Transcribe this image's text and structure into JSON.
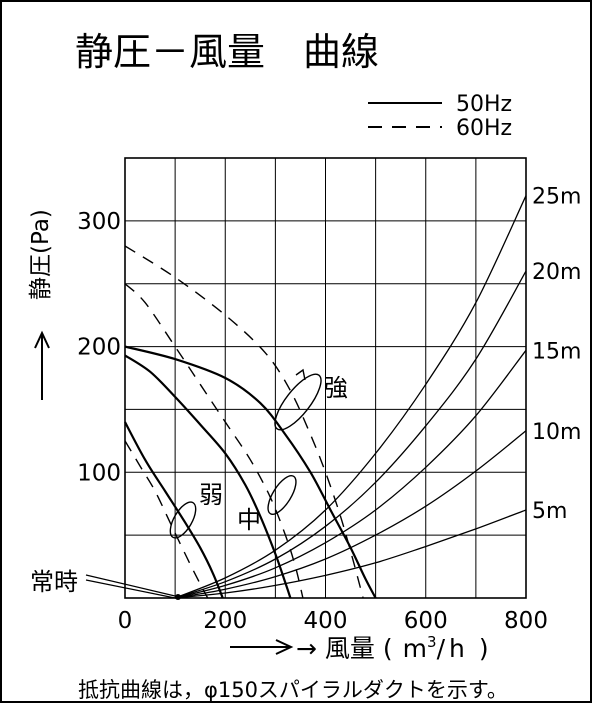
{
  "chart_data": {
    "type": "line",
    "title": "静圧－風量　曲線",
    "xlabel": "風量（m³/h）",
    "xlabel_parts": [
      "→ 風量",
      "(",
      "m",
      "3",
      "/",
      "h",
      ")"
    ],
    "ylabel": "静圧(Pa)",
    "ylabel_parts": [
      "静圧",
      "(",
      "Pa",
      ")"
    ],
    "xlim": [
      0,
      800
    ],
    "ylim": [
      0,
      350
    ],
    "x_ticks": [
      {
        "v": 0,
        "label": "0"
      },
      {
        "v": 200,
        "label": "200"
      },
      {
        "v": 400,
        "label": "400"
      },
      {
        "v": 600,
        "label": "600"
      },
      {
        "v": 800,
        "label": "800"
      }
    ],
    "y_ticks": [
      {
        "v": 100,
        "label": "100"
      },
      {
        "v": 200,
        "label": "200"
      },
      {
        "v": 300,
        "label": "300"
      }
    ],
    "grid": true,
    "legend": {
      "position": "top-right",
      "entries": [
        {
          "label": "50Hz",
          "dash": "solid"
        },
        {
          "label": "60Hz",
          "dash": "dashed"
        }
      ]
    },
    "fan_curves": [
      {
        "mode": "強",
        "freq": "50Hz",
        "dash": "solid",
        "points": [
          [
            0,
            200
          ],
          [
            100,
            190
          ],
          [
            200,
            175
          ],
          [
            270,
            155
          ],
          [
            320,
            130
          ],
          [
            370,
            100
          ],
          [
            410,
            70
          ],
          [
            450,
            40
          ],
          [
            480,
            15
          ],
          [
            500,
            0
          ]
        ]
      },
      {
        "mode": "強",
        "freq": "60Hz",
        "dash": "dashed",
        "points": [
          [
            0,
            280
          ],
          [
            100,
            255
          ],
          [
            200,
            225
          ],
          [
            280,
            195
          ],
          [
            330,
            165
          ],
          [
            370,
            130
          ],
          [
            400,
            100
          ],
          [
            430,
            65
          ],
          [
            455,
            30
          ],
          [
            475,
            0
          ]
        ]
      },
      {
        "mode": "中",
        "freq": "50Hz",
        "dash": "solid",
        "points": [
          [
            0,
            193
          ],
          [
            50,
            180
          ],
          [
            100,
            160
          ],
          [
            150,
            138
          ],
          [
            200,
            115
          ],
          [
            240,
            90
          ],
          [
            270,
            65
          ],
          [
            300,
            35
          ],
          [
            320,
            12
          ],
          [
            330,
            0
          ]
        ]
      },
      {
        "mode": "中",
        "freq": "60Hz",
        "dash": "dashed",
        "points": [
          [
            0,
            250
          ],
          [
            40,
            235
          ],
          [
            100,
            200
          ],
          [
            150,
            170
          ],
          [
            200,
            140
          ],
          [
            250,
            110
          ],
          [
            290,
            80
          ],
          [
            320,
            50
          ],
          [
            340,
            25
          ],
          [
            355,
            0
          ]
        ]
      },
      {
        "mode": "弱",
        "freq": "50Hz",
        "dash": "solid",
        "points": [
          [
            0,
            140
          ],
          [
            40,
            110
          ],
          [
            80,
            85
          ],
          [
            120,
            60
          ],
          [
            150,
            40
          ],
          [
            175,
            20
          ],
          [
            195,
            0
          ]
        ]
      },
      {
        "mode": "弱",
        "freq": "60Hz",
        "dash": "dashed",
        "points": [
          [
            0,
            125
          ],
          [
            30,
            105
          ],
          [
            60,
            85
          ],
          [
            90,
            60
          ],
          [
            120,
            35
          ],
          [
            145,
            15
          ],
          [
            165,
            0
          ]
        ]
      }
    ],
    "resistance_curves": [
      {
        "label": "25m",
        "points": [
          [
            100,
            0
          ],
          [
            200,
            16
          ],
          [
            300,
            38
          ],
          [
            400,
            70
          ],
          [
            500,
            115
          ],
          [
            600,
            170
          ],
          [
            700,
            235
          ],
          [
            800,
            320
          ]
        ]
      },
      {
        "label": "20m",
        "points": [
          [
            100,
            0
          ],
          [
            200,
            13
          ],
          [
            300,
            31
          ],
          [
            400,
            57
          ],
          [
            500,
            92
          ],
          [
            600,
            137
          ],
          [
            700,
            190
          ],
          [
            800,
            260
          ]
        ]
      },
      {
        "label": "15m",
        "points": [
          [
            100,
            0
          ],
          [
            200,
            10
          ],
          [
            300,
            24
          ],
          [
            400,
            44
          ],
          [
            500,
            70
          ],
          [
            600,
            104
          ],
          [
            700,
            145
          ],
          [
            800,
            197
          ]
        ]
      },
      {
        "label": "10m",
        "points": [
          [
            100,
            0
          ],
          [
            200,
            7
          ],
          [
            300,
            17
          ],
          [
            400,
            31
          ],
          [
            500,
            50
          ],
          [
            600,
            73
          ],
          [
            700,
            101
          ],
          [
            800,
            133
          ]
        ]
      },
      {
        "label": "5m",
        "points": [
          [
            100,
            0
          ],
          [
            200,
            4
          ],
          [
            300,
            10
          ],
          [
            400,
            18
          ],
          [
            500,
            28
          ],
          [
            600,
            41
          ],
          [
            700,
            55
          ],
          [
            800,
            70
          ]
        ]
      }
    ],
    "annotations": {
      "mode_labels": [
        "強",
        "中",
        "弱"
      ],
      "constant_label": "常時",
      "note": "抵抗曲線は，φ150スパイラルダクトを示す。"
    },
    "colors": {
      "line": "#000000",
      "background": "#ffffff"
    }
  }
}
